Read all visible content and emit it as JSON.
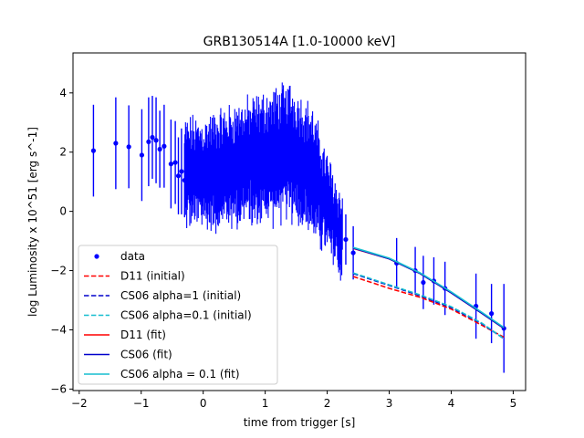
{
  "chart_data": {
    "type": "scatter",
    "title": "GRB130514A [1.0-10000 keV]",
    "xlabel": "time from trigger [s]",
    "ylabel": "log Luminosity x 10^51 [erg s^-1]",
    "xlim": [
      -2.1,
      5.2
    ],
    "ylim": [
      -6.05,
      5.35
    ],
    "xticks": [
      -2,
      -1,
      0,
      1,
      2,
      3,
      4,
      5
    ],
    "xtick_labels": [
      "−2",
      "−1",
      "0",
      "1",
      "2",
      "3",
      "4",
      "5"
    ],
    "yticks": [
      -6,
      -4,
      -2,
      0,
      2,
      4
    ],
    "ytick_labels": [
      "−6",
      "−4",
      "−2",
      "0",
      "2",
      "4"
    ],
    "grid": false,
    "legend_position": "lower-left",
    "data_points": {
      "name": "data",
      "color": "#0000ff",
      "points": [
        {
          "x": -1.77,
          "y": 2.05,
          "err": 1.55
        },
        {
          "x": -1.41,
          "y": 2.3,
          "err": 1.55
        },
        {
          "x": -1.2,
          "y": 2.18,
          "err": 1.4
        },
        {
          "x": -0.99,
          "y": 1.9,
          "err": 1.55
        },
        {
          "x": -0.88,
          "y": 2.35,
          "err": 1.5
        },
        {
          "x": -0.82,
          "y": 2.5,
          "err": 1.4
        },
        {
          "x": -0.76,
          "y": 2.4,
          "err": 1.45
        },
        {
          "x": -0.7,
          "y": 2.1,
          "err": 1.3
        },
        {
          "x": -0.63,
          "y": 2.2,
          "err": 1.4
        },
        {
          "x": -0.52,
          "y": 1.6,
          "err": 1.5
        },
        {
          "x": -0.45,
          "y": 1.65,
          "err": 1.4
        },
        {
          "x": -0.4,
          "y": 1.2,
          "err": 1.3
        },
        {
          "x": -0.35,
          "y": 1.35,
          "err": 1.45
        },
        {
          "x": -0.3,
          "y": 1.05,
          "err": 1.25
        },
        {
          "x": 2.3,
          "y": -0.95,
          "err": 0.85
        },
        {
          "x": 2.42,
          "y": -1.4,
          "err": 0.9
        },
        {
          "x": 3.12,
          "y": -1.75,
          "err": 0.85
        },
        {
          "x": 3.42,
          "y": -2.0,
          "err": 0.8
        },
        {
          "x": 3.55,
          "y": -2.4,
          "err": 0.9
        },
        {
          "x": 3.72,
          "y": -2.35,
          "err": 0.8
        },
        {
          "x": 3.9,
          "y": -2.6,
          "err": 0.9
        },
        {
          "x": 4.4,
          "y": -3.2,
          "err": 1.1
        },
        {
          "x": 4.65,
          "y": -3.45,
          "err": 1.0
        },
        {
          "x": 4.85,
          "y": -3.95,
          "err": 1.5
        }
      ],
      "dense_segment": {
        "x_start": -0.3,
        "x_end": 2.25,
        "trend_x": [
          -0.3,
          0.0,
          0.5,
          1.0,
          1.4,
          1.75,
          2.0,
          2.25
        ],
        "trend_y": [
          1.3,
          1.25,
          1.55,
          1.8,
          2.05,
          1.35,
          0.2,
          -0.9
        ],
        "err_x": [
          -0.3,
          0.5,
          1.0,
          1.4,
          1.75,
          2.0,
          2.25
        ],
        "err_half": [
          1.25,
          1.45,
          1.55,
          1.65,
          1.55,
          1.2,
          0.95
        ]
      }
    },
    "series": [
      {
        "name": "D11 (initial)",
        "color": "#ff0000",
        "style": "dashed",
        "x": [
          2.42,
          3.0,
          3.5,
          4.0,
          4.5,
          4.85
        ],
        "y": [
          -2.2,
          -2.6,
          -2.9,
          -3.3,
          -3.85,
          -4.25
        ]
      },
      {
        "name": "CS06 alpha=1 (initial)",
        "color": "#0000cc",
        "style": "dashed",
        "x": [
          2.42,
          3.0,
          3.5,
          4.0,
          4.5,
          4.85
        ],
        "y": [
          -2.1,
          -2.5,
          -2.85,
          -3.25,
          -3.8,
          -4.3
        ]
      },
      {
        "name": "CS06 alpha=0.1 (initial)",
        "color": "#17becf",
        "style": "dashed",
        "x": [
          2.42,
          3.0,
          3.5,
          4.0,
          4.5,
          4.85
        ],
        "y": [
          -2.08,
          -2.48,
          -2.82,
          -3.22,
          -3.78,
          -4.3
        ]
      },
      {
        "name": "D11 (fit)",
        "color": "#ff0000",
        "style": "solid",
        "x": [
          2.42,
          3.0,
          3.5,
          4.0,
          4.5,
          4.85
        ],
        "y": [
          -1.25,
          -1.6,
          -2.1,
          -2.75,
          -3.45,
          -3.95
        ]
      },
      {
        "name": "CS06 (fit)",
        "color": "#0000cc",
        "style": "solid",
        "x": [
          2.42,
          3.0,
          3.5,
          4.0,
          4.5,
          4.85
        ],
        "y": [
          -1.24,
          -1.6,
          -2.1,
          -2.75,
          -3.45,
          -3.95
        ]
      },
      {
        "name": "CS06 alpha = 0.1 (fit)",
        "color": "#17becf",
        "style": "solid",
        "x": [
          2.42,
          3.0,
          3.5,
          4.0,
          4.5,
          4.85
        ],
        "y": [
          -1.22,
          -1.58,
          -2.08,
          -2.72,
          -3.42,
          -3.92
        ]
      }
    ]
  }
}
